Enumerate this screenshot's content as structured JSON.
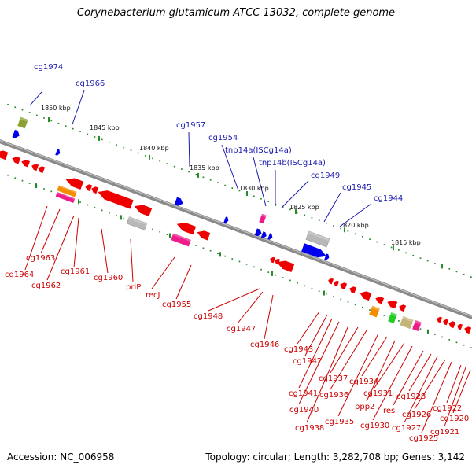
{
  "title": "Corynebacterium glutamicum ATCC 13032, complete genome",
  "footer": {
    "accession": "Accession: NC_006958",
    "topology": "Topology: circular; Length: 3,282,708 bp; Genes: 3,142"
  },
  "colors": {
    "backbone": "#8a8a8a",
    "dots": "#2a8a2a",
    "label_blue": "#1a1ab0",
    "label_red": "#cc0000",
    "gene_red": "#ee0000",
    "gene_blue": "#0000ee",
    "gene_pink": "#ee1b8a",
    "gene_gray": "#b8b8b8",
    "gene_orange": "#f28c00",
    "gene_green": "#22cc22",
    "gene_olive": "#8aa032",
    "gene_tan": "#c4b478"
  },
  "ticks": [
    {
      "label": "1850 kbp"
    },
    {
      "label": "1845 kbp"
    },
    {
      "label": "1840 kbp"
    },
    {
      "label": "1835 kbp"
    },
    {
      "label": "1830 kbp"
    },
    {
      "label": "1825 kbp"
    },
    {
      "label": "1820 kbp"
    },
    {
      "label": "1815 kbp"
    }
  ],
  "genes_forward": [
    "cg1974",
    "cg1966",
    "cg1957",
    "cg1954",
    "tnp14a(ISCg14a)",
    "tnp14b(ISCg14a)",
    "cg1949",
    "cg1945",
    "cg1944"
  ],
  "genes_reverse": [
    "cg1964",
    "cg1963",
    "cg1962",
    "cg1961",
    "cg1960",
    "priP",
    "recJ",
    "cg1955",
    "cg1948",
    "cg1947",
    "cg1946",
    "cg1943",
    "cg1942",
    "cg1941",
    "cg1940",
    "cg1938",
    "cg1937",
    "cg1936",
    "cg1935",
    "cg1934",
    "ppp2",
    "cg1931",
    "cg1930",
    "res",
    "cg1928",
    "cg1927",
    "cg1926",
    "cg1925",
    "cg1922",
    "cg1921",
    "cg1920"
  ]
}
